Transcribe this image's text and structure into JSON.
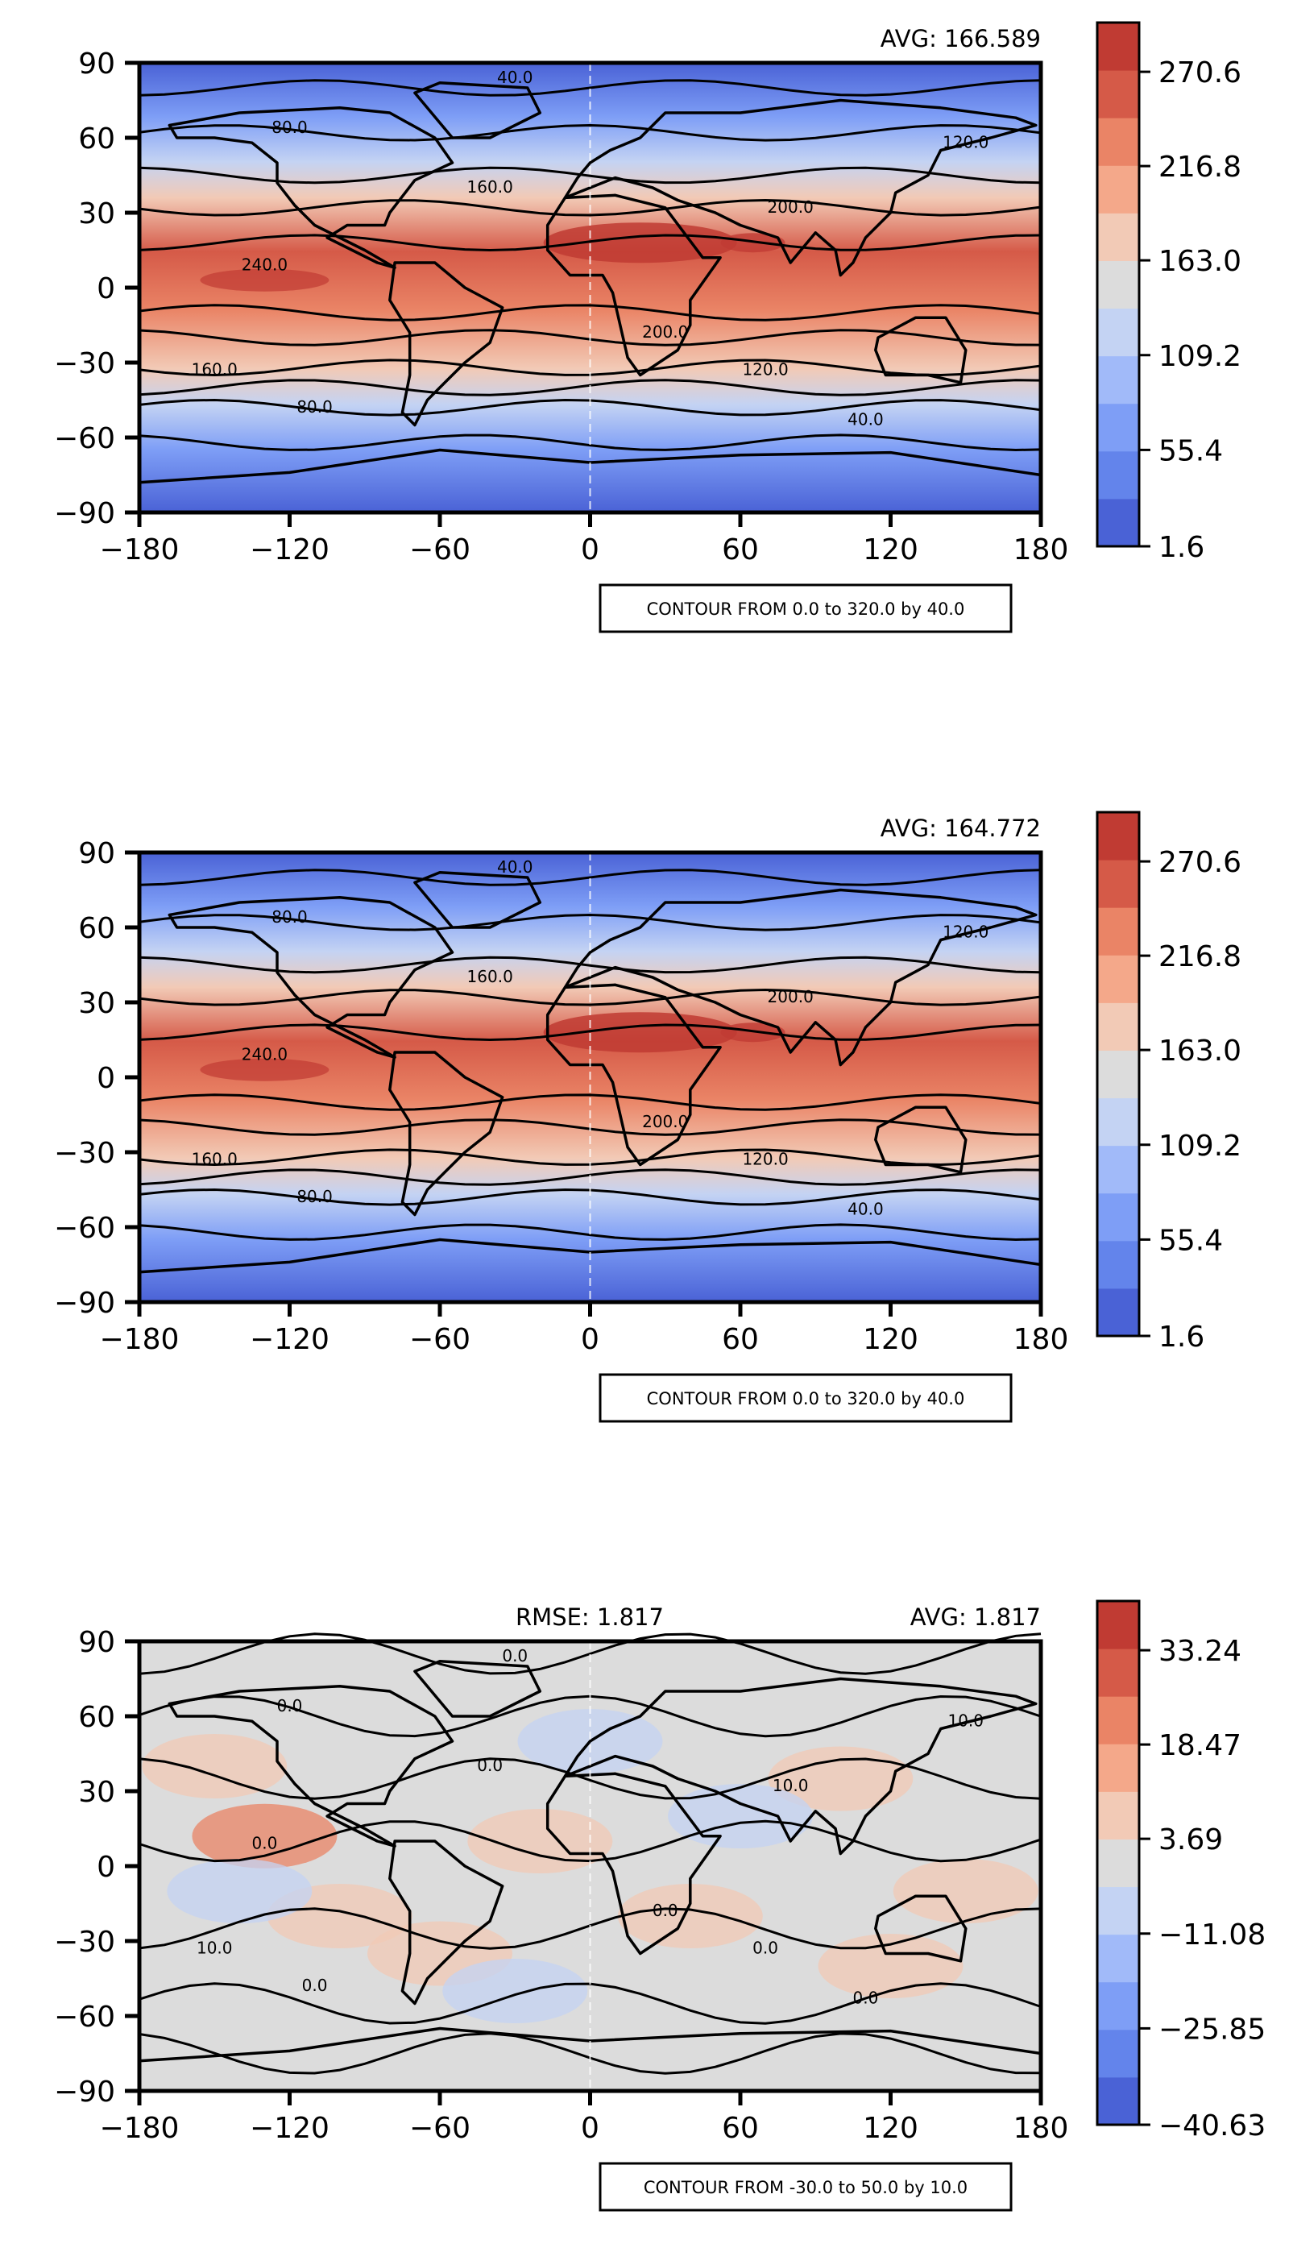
{
  "colors": {
    "cool_warm": [
      "#4a62d6",
      "#6384eb",
      "#7e9ef6",
      "#a1baf9",
      "#c4d3f3",
      "#dcdcdc",
      "#f2cab6",
      "#f4a88a",
      "#ea8466",
      "#d55a48",
      "#c03b33"
    ],
    "border": "#000000",
    "contour": "#000000"
  },
  "panels": [
    {
      "id": "panel-1",
      "avg_label": "AVG: 166.589",
      "rmse_label": "",
      "colorbar_ticks": [
        "270.6",
        "216.8",
        "163.0",
        "109.2",
        "55.4",
        "1.6"
      ],
      "contour_info": "CONTOUR FROM 0.0 to 320.0 by 40.0",
      "contour_labels": [
        "40.0",
        "80.0",
        "120.0",
        "160.0",
        "200.0",
        "240.0",
        "200.0",
        "160.0",
        "120.0",
        "80.0",
        "40.0"
      ]
    },
    {
      "id": "panel-2",
      "avg_label": "AVG: 164.772",
      "rmse_label": "",
      "colorbar_ticks": [
        "270.6",
        "216.8",
        "163.0",
        "109.2",
        "55.4",
        "1.6"
      ],
      "contour_info": "CONTOUR FROM 0.0 to 320.0 by 40.0",
      "contour_labels": [
        "40.0",
        "80.0",
        "120.0",
        "160.0",
        "200.0",
        "240.0",
        "200.0",
        "160.0",
        "120.0",
        "80.0",
        "40.0"
      ]
    },
    {
      "id": "panel-3",
      "avg_label": "AVG: 1.817",
      "rmse_label": "RMSE: 1.817",
      "colorbar_ticks": [
        "33.24",
        "18.47",
        "3.69",
        "−11.08",
        "−25.85",
        "−40.63"
      ],
      "contour_info": "CONTOUR FROM -30.0 to 50.0 by 10.0",
      "contour_labels": [
        "0.0",
        "0.0",
        "10.0",
        "0.0",
        "10.0",
        "0.0",
        "0.0",
        "10.0",
        "0.0",
        "0.0",
        "0.0"
      ]
    }
  ],
  "axes": {
    "x_ticks": [
      "−180",
      "−120",
      "−60",
      "0",
      "60",
      "120",
      "180"
    ],
    "y_ticks": [
      "90",
      "60",
      "30",
      "0",
      "−30",
      "−60",
      "−90"
    ]
  }
}
